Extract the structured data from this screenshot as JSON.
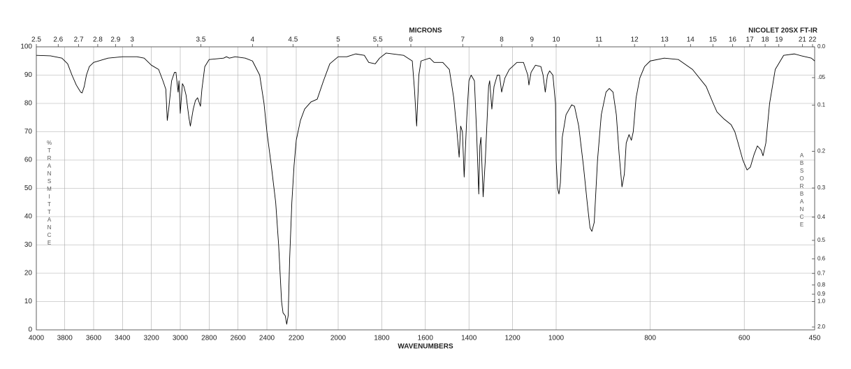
{
  "chart_data": {
    "type": "line",
    "title": "MICRONS",
    "instrument": "NICOLET 20SX FT-IR",
    "x_label": "WAVENUMBERS",
    "y_label": "%TRANSMITTANCE",
    "y2_label": "ABSORBANCE",
    "color": "#000000",
    "grid": true,
    "xlim": [
      4000,
      450
    ],
    "xticks": [
      4000,
      3800,
      3600,
      3400,
      3200,
      3000,
      2800,
      2600,
      2400,
      2200,
      2000,
      1800,
      1600,
      1400,
      1200,
      1000,
      800,
      600,
      450
    ],
    "micron_ticks": [
      2.5,
      2.6,
      2.7,
      2.8,
      2.9,
      3,
      3.5,
      4,
      4.5,
      5,
      5.5,
      6,
      7,
      8,
      9,
      10,
      11,
      12,
      13,
      14,
      15,
      16,
      17,
      18,
      19,
      21,
      22
    ],
    "ylim": [
      0,
      100
    ],
    "yticks": [
      0,
      10,
      20,
      30,
      40,
      50,
      60,
      70,
      80,
      90,
      100
    ],
    "y2scale": "absorbance",
    "y2ticks": [
      {
        "value": 0,
        "label": "0.0"
      },
      {
        "value": 0.05,
        "label": ".05"
      },
      0.1,
      0.2,
      0.3,
      0.4,
      0.5,
      0.6,
      0.7,
      0.8,
      0.9,
      {
        "value": 1,
        "label": "1.0"
      },
      {
        "value": 2,
        "label": "2.0"
      }
    ],
    "x": [
      4000,
      3900,
      3820,
      3780,
      3750,
      3720,
      3690,
      3680,
      3665,
      3650,
      3630,
      3600,
      3500,
      3400,
      3300,
      3250,
      3200,
      3150,
      3120,
      3100,
      3090,
      3080,
      3060,
      3040,
      3030,
      3015,
      3009,
      3000,
      2985,
      2975,
      2960,
      2940,
      2930,
      2910,
      2895,
      2880,
      2860,
      2850,
      2830,
      2800,
      2700,
      2680,
      2660,
      2620,
      2550,
      2500,
      2450,
      2420,
      2400,
      2370,
      2340,
      2320,
      2300,
      2290,
      2275,
      2265,
      2255,
      2245,
      2230,
      2215,
      2200,
      2180,
      2160,
      2130,
      2100,
      2070,
      2040,
      2000,
      1960,
      1920,
      1880,
      1860,
      1830,
      1810,
      1780,
      1700,
      1680,
      1660,
      1650,
      1640,
      1630,
      1620,
      1580,
      1560,
      1520,
      1490,
      1470,
      1455,
      1445,
      1438,
      1430,
      1422,
      1410,
      1400,
      1390,
      1375,
      1365,
      1355,
      1350,
      1345,
      1335,
      1325,
      1310,
      1305,
      1295,
      1285,
      1270,
      1260,
      1250,
      1235,
      1215,
      1180,
      1150,
      1130,
      1125,
      1115,
      1095,
      1070,
      1060,
      1050,
      1040,
      1030,
      1015,
      1003,
      1000,
      997,
      994,
      991,
      987,
      979,
      967,
      961,
      952,
      942,
      934,
      928,
      924,
      919,
      912,
      904,
      894,
      887,
      879,
      872,
      866,
      860,
      855,
      851,
      845,
      840,
      836,
      830,
      822,
      812,
      800,
      770,
      740,
      710,
      681,
      666,
      658,
      643,
      628,
      620,
      613,
      603,
      594,
      587,
      579,
      572,
      564,
      560,
      554,
      546,
      534,
      516,
      493,
      478,
      457,
      450
    ],
    "values": [
      97,
      96.8,
      96,
      94,
      90,
      86.5,
      84,
      83.7,
      86,
      90,
      93,
      94.5,
      96,
      96.5,
      96.5,
      96,
      93.5,
      92,
      88,
      85,
      74,
      78,
      88,
      91,
      91,
      84,
      88,
      76.5,
      87,
      86,
      83,
      75,
      72,
      78,
      81,
      82,
      79,
      85,
      93,
      95.5,
      96,
      96.5,
      96,
      96.5,
      96,
      95,
      90,
      80,
      70,
      58,
      45,
      30,
      10,
      6,
      5,
      2,
      5,
      25,
      45,
      58,
      67,
      74,
      78,
      80.5,
      81.5,
      88,
      94,
      96.5,
      96.5,
      97.5,
      97,
      94.5,
      94,
      96,
      97.8,
      97,
      96,
      95,
      85,
      72,
      90,
      95,
      96,
      94.5,
      94.5,
      92,
      82,
      70,
      61,
      72,
      70,
      54,
      75,
      88,
      90,
      88,
      70,
      48,
      65,
      68,
      47,
      60,
      86,
      88,
      78,
      86,
      90,
      90,
      84,
      89,
      92,
      94.5,
      94.5,
      90,
      86.5,
      91,
      93.5,
      93,
      90,
      84,
      90,
      91.5,
      90,
      80,
      60,
      50,
      48,
      52,
      68,
      76,
      79.5,
      79,
      72,
      58,
      45,
      36,
      34.8,
      38,
      60,
      76,
      84,
      85.3,
      84,
      76,
      62,
      50.5,
      55,
      66,
      69,
      67,
      70,
      82,
      89,
      93,
      95,
      96,
      95.5,
      92,
      86,
      80,
      77,
      74.5,
      72.5,
      70,
      66,
      60,
      56.5,
      57.5,
      62,
      65,
      63.5,
      61.5,
      66,
      80,
      92,
      97,
      97.5,
      96.8,
      96,
      95
    ]
  }
}
